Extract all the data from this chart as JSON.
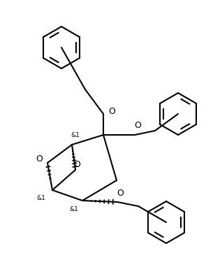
{
  "background_color": "#ffffff",
  "line_color": "#000000",
  "lw": 1.5,
  "figsize": [
    2.95,
    3.72
  ],
  "dpi": 100,
  "xlim": [
    0,
    295
  ],
  "ylim": [
    0,
    372
  ]
}
